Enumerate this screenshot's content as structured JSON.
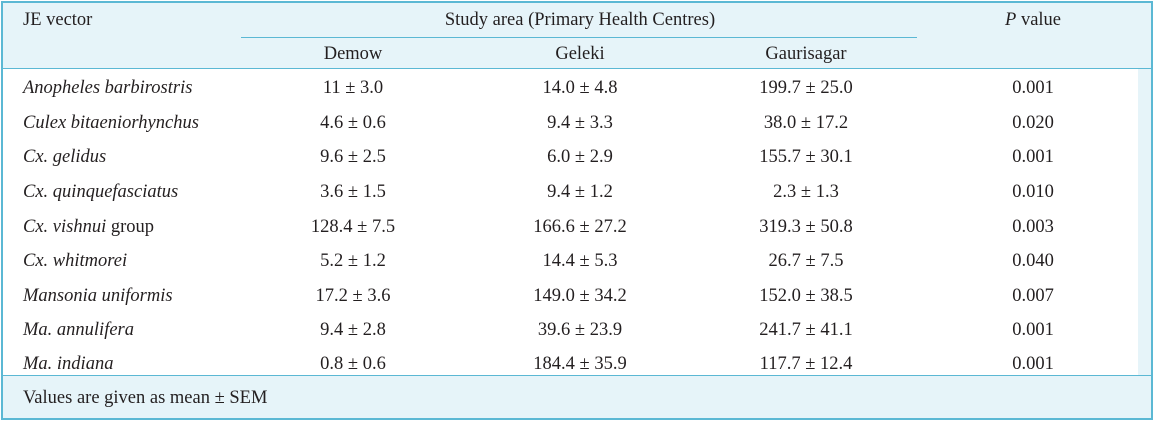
{
  "header": {
    "first_col": "JE vector",
    "group": "Study area (Primary Health Centres)",
    "pvalue_italic": "P",
    "pvalue_rest": " value",
    "cols": [
      "Demow",
      "Geleki",
      "Gaurisagar"
    ]
  },
  "rows": [
    {
      "vector_italic": "Anopheles barbirostris",
      "vector_rest": "",
      "demow": "11 ± 3.0",
      "geleki": "14.0 ± 4.8",
      "gaurisagar": "199.7 ± 25.0",
      "p": "0.001"
    },
    {
      "vector_italic": "Culex bitaeniorhynchus",
      "vector_rest": "",
      "demow": "4.6 ± 0.6",
      "geleki": "9.4 ± 3.3",
      "gaurisagar": "38.0 ± 17.2",
      "p": "0.020"
    },
    {
      "vector_italic": "Cx. gelidus",
      "vector_rest": "",
      "demow": "9.6 ± 2.5",
      "geleki": "6.0 ± 2.9",
      "gaurisagar": "155.7 ± 30.1",
      "p": "0.001"
    },
    {
      "vector_italic": "Cx. quinquefasciatus",
      "vector_rest": "",
      "demow": "3.6 ± 1.5",
      "geleki": "9.4 ± 1.2",
      "gaurisagar": "2.3 ± 1.3",
      "p": "0.010"
    },
    {
      "vector_italic": "Cx. vishnui",
      "vector_rest": " group",
      "demow": "128.4 ± 7.5",
      "geleki": "166.6 ± 27.2",
      "gaurisagar": "319.3 ± 50.8",
      "p": "0.003"
    },
    {
      "vector_italic": "Cx. whitmorei",
      "vector_rest": "",
      "demow": "5.2 ± 1.2",
      "geleki": "14.4 ± 5.3",
      "gaurisagar": "26.7 ± 7.5",
      "p": "0.040"
    },
    {
      "vector_italic": "Mansonia uniformis",
      "vector_rest": "",
      "demow": "17.2 ± 3.6",
      "geleki": "149.0 ± 34.2",
      "gaurisagar": "152.0 ± 38.5",
      "p": "0.007"
    },
    {
      "vector_italic": "Ma. annulifera",
      "vector_rest": "",
      "demow": "9.4 ± 2.8",
      "geleki": "39.6 ± 23.9",
      "gaurisagar": "241.7 ± 41.1",
      "p": "0.001"
    },
    {
      "vector_italic": "Ma. indiana",
      "vector_rest": "",
      "demow": "0.8 ± 0.6",
      "geleki": "184.4 ± 35.9",
      "gaurisagar": "117.7 ± 12.4",
      "p": "0.001"
    }
  ],
  "footnote": "Values are given as mean ± SEM"
}
